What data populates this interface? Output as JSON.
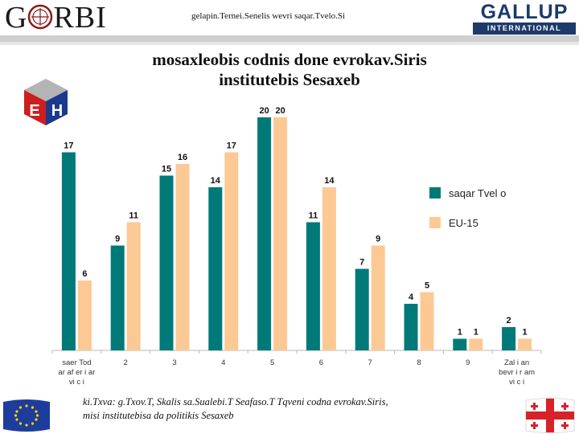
{
  "header": {
    "logo_left": "G",
    "logo_left_rest": "RBI",
    "subtitle": "gelapin.Ternei.Senelis wevri saqar.Tvelo.Si",
    "gallup_name": "GALLUP",
    "gallup_sub": "INTERNATIONAL"
  },
  "title_line1": "mosaxleobis codnis done evrokav.Siris",
  "title_line2": "institutebis Sesaxeb",
  "footer": {
    "note_label": "ki.Txva:",
    "note_line1_rest": " g.Txov.T, Skalis sa.Sualebi.T Seafaso.T Tqveni codna evrokav.Siris,",
    "note_line2": "misi institutebisa da politikis Sesaxeb"
  },
  "colors": {
    "series1": "#007a78",
    "series2": "#fcc995",
    "axis": "#b8b8b8"
  },
  "chart_data": {
    "type": "bar",
    "categories": [
      "saer Tod araferi ar vici",
      "2",
      "3",
      "4",
      "5",
      "6",
      "7",
      "8",
      "9",
      "Zalian bevri r am vici"
    ],
    "category_lines": [
      [
        "saer Tod",
        "ar af er i   ar",
        "vi c i"
      ],
      [
        "2"
      ],
      [
        "3"
      ],
      [
        "4"
      ],
      [
        "5"
      ],
      [
        "6"
      ],
      [
        "7"
      ],
      [
        "8"
      ],
      [
        "9"
      ],
      [
        "Zal   i an",
        "bevr i    r am",
        "vi c i"
      ]
    ],
    "series": [
      {
        "name": "saqar Tvel  o",
        "values": [
          17,
          9,
          15,
          14,
          20,
          11,
          7,
          4,
          1,
          2
        ]
      },
      {
        "name": "EU-15",
        "values": [
          6,
          11,
          16,
          17,
          20,
          14,
          9,
          5,
          1,
          1
        ]
      }
    ],
    "ylim": [
      0,
      20
    ],
    "legend_position": "right",
    "title": "mosaxleobis codnis done evrokav.Siris institutebis Sesaxeb",
    "xlabel": "",
    "ylabel": ""
  }
}
